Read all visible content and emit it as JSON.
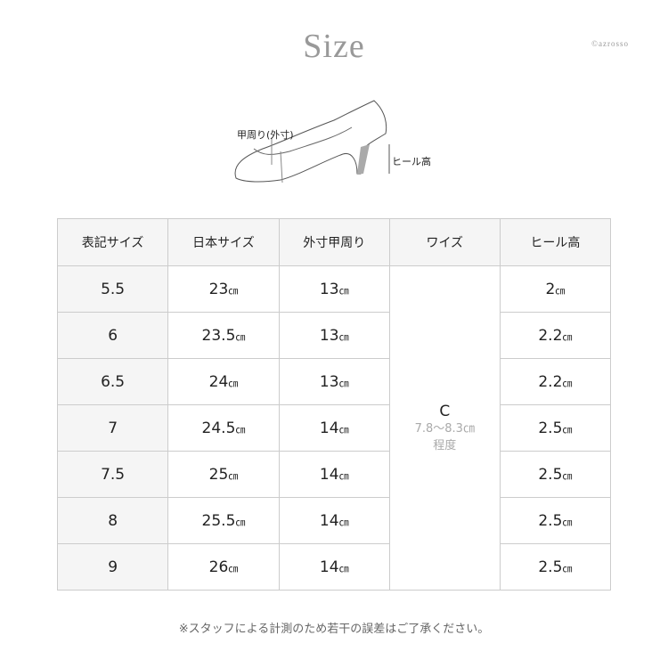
{
  "title": "Size",
  "copyright": "©azrosso",
  "diagram": {
    "instep_label": "甲周り(外寸)",
    "heel_label": "ヒール高"
  },
  "table": {
    "headers": [
      "表記サイズ",
      "日本サイズ",
      "外寸甲周り",
      "ワイズ",
      "ヒール高"
    ],
    "unit": "cm",
    "rows": [
      {
        "size": "5.5",
        "jp": "23",
        "instep": "13",
        "heel": "2"
      },
      {
        "size": "6",
        "jp": "23.5",
        "instep": "13",
        "heel": "2.2"
      },
      {
        "size": "6.5",
        "jp": "24",
        "instep": "13",
        "heel": "2.2"
      },
      {
        "size": "7",
        "jp": "24.5",
        "instep": "14",
        "heel": "2.5"
      },
      {
        "size": "7.5",
        "jp": "25",
        "instep": "14",
        "heel": "2.5"
      },
      {
        "size": "8",
        "jp": "25.5",
        "instep": "14",
        "heel": "2.5"
      },
      {
        "size": "9",
        "jp": "26",
        "instep": "14",
        "heel": "2.5"
      }
    ],
    "width": {
      "value": "C",
      "range": "7.8～8.3㎝",
      "suffix": "程度"
    }
  },
  "note": "※スタッフによる計測のため若干の誤差はご了承ください。"
}
